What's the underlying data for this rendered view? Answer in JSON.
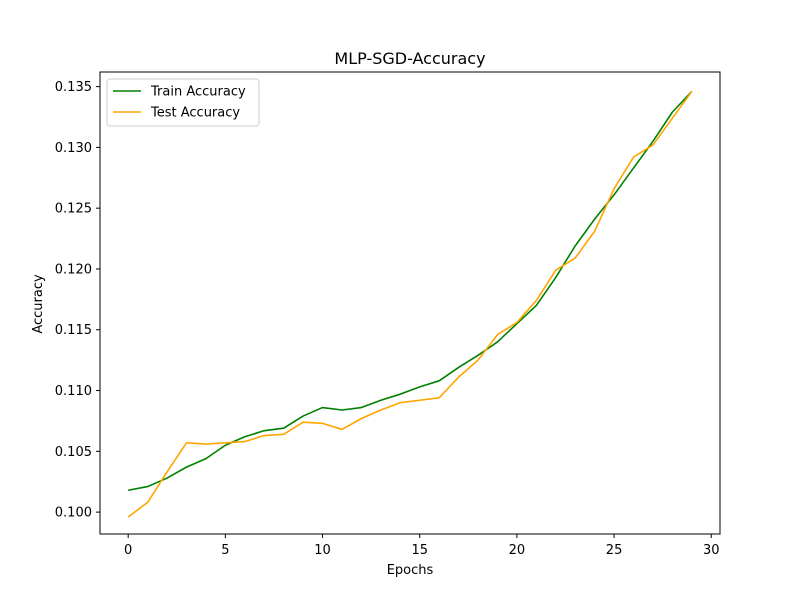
{
  "chart_data": {
    "type": "line",
    "title": "MLP-SGD-Accuracy",
    "xlabel": "Epochs",
    "ylabel": "Accuracy",
    "xlim": [
      -1.45,
      30.45
    ],
    "ylim": [
      0.0982,
      0.1362
    ],
    "xticks": [
      0,
      5,
      10,
      15,
      20,
      25,
      30
    ],
    "yticks": [
      0.1,
      0.105,
      0.11,
      0.115,
      0.12,
      0.125,
      0.13,
      0.135
    ],
    "ytick_labels": [
      "0.100",
      "0.105",
      "0.110",
      "0.115",
      "0.120",
      "0.125",
      "0.130",
      "0.135"
    ],
    "legend_position": "upper-left",
    "grid": false,
    "series": [
      {
        "name": "Train Accuracy",
        "color": "#008000",
        "x": [
          0,
          1,
          2,
          3,
          4,
          5,
          6,
          7,
          8,
          9,
          10,
          11,
          12,
          13,
          14,
          15,
          16,
          17,
          18,
          19,
          20,
          21,
          22,
          23,
          24,
          25,
          26,
          27,
          28,
          29
        ],
        "values": [
          0.1018,
          0.1021,
          0.1028,
          0.1037,
          0.1044,
          0.1055,
          0.1062,
          0.1067,
          0.1069,
          0.1079,
          0.1086,
          0.1084,
          0.1086,
          0.1092,
          0.1097,
          0.1103,
          0.1108,
          0.1119,
          0.1129,
          0.114,
          0.1155,
          0.117,
          0.1193,
          0.1219,
          0.1241,
          0.1261,
          0.1283,
          0.1305,
          0.1329,
          0.1346
        ]
      },
      {
        "name": "Test Accuracy",
        "color": "#FFA500",
        "x": [
          0,
          1,
          2,
          3,
          4,
          5,
          6,
          7,
          8,
          9,
          10,
          11,
          12,
          13,
          14,
          15,
          16,
          17,
          18,
          19,
          20,
          21,
          22,
          23,
          24,
          25,
          26,
          27,
          28,
          29
        ],
        "values": [
          0.0996,
          0.1008,
          0.1033,
          0.1057,
          0.1056,
          0.1057,
          0.1058,
          0.1063,
          0.1064,
          0.1074,
          0.1073,
          0.1068,
          0.1077,
          0.1084,
          0.109,
          0.1092,
          0.1094,
          0.1111,
          0.1125,
          0.1146,
          0.1156,
          0.1174,
          0.1199,
          0.1209,
          0.1231,
          0.1266,
          0.1292,
          0.1302,
          0.1324,
          0.1346
        ]
      }
    ]
  }
}
